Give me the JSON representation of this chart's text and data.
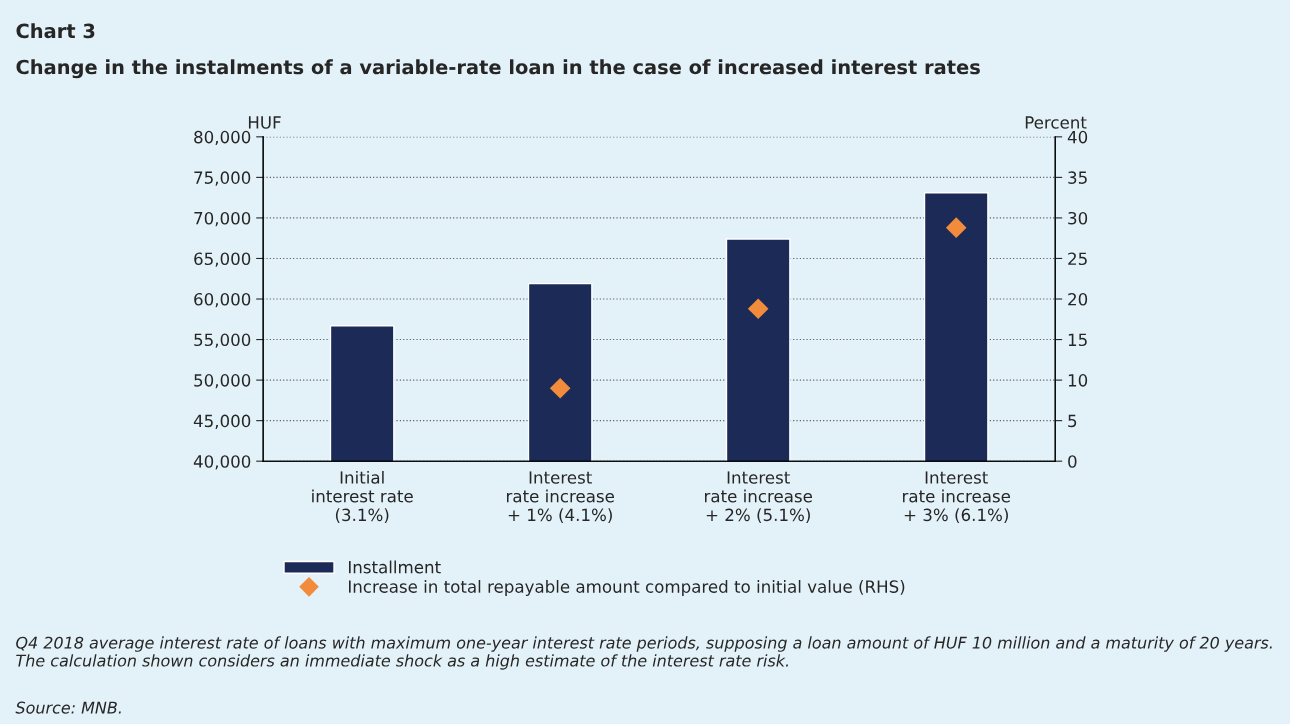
{
  "chart_data": {
    "type": "bar",
    "title": "Chart 3",
    "subtitle": "Change in the instalments of a variable-rate loan in the case of increased interest rates",
    "ylabel": "HUF",
    "y2label": "Percent",
    "categories": [
      "Initial\ninterest rate\n(3.1%)",
      "Interest\nrate increase\n+ 1% (4.1%)",
      "Interest\nrate increase\n+ 2% (5.1%)",
      "Interest\nrate increase\n+ 3% (6.1%)"
    ],
    "series": [
      {
        "name": "Installment",
        "color": "#1b2a56",
        "values": [
          56700,
          61900,
          67400,
          73100
        ]
      },
      {
        "name": "Increase in total repayable amount compared to initial value (RHS)",
        "type": "scatter",
        "axis": "y2",
        "marker": "diamond",
        "color": "#f28c3c",
        "values": [
          null,
          9.0,
          18.8,
          28.8
        ]
      }
    ],
    "ylim": [
      40000,
      80000
    ],
    "yticks": [
      {
        "value": 40000,
        "label": "40,000"
      },
      {
        "value": 45000,
        "label": "45,000"
      },
      {
        "value": 50000,
        "label": "50,000"
      },
      {
        "value": 55000,
        "label": "55,000"
      },
      {
        "value": 60000,
        "label": "60,000"
      },
      {
        "value": 65000,
        "label": "65,000"
      },
      {
        "value": 70000,
        "label": "70,000"
      },
      {
        "value": 75000,
        "label": "75,000"
      },
      {
        "value": 80000,
        "label": "80,000"
      }
    ],
    "y2lim": [
      0,
      40
    ],
    "y2ticks": [
      0,
      5,
      10,
      15,
      20,
      25,
      30,
      35,
      40
    ],
    "grid": "y",
    "legend": "bottom",
    "annotations": [
      "Q4 2018 average interest rate of loans with maximum one-year interest rate periods, supposing a loan amount of HUF 10 million and a maturity of 20 years. The calculation shown considers an immediate shock as a high estimate of the interest rate risk.",
      "Source: MNB."
    ]
  }
}
